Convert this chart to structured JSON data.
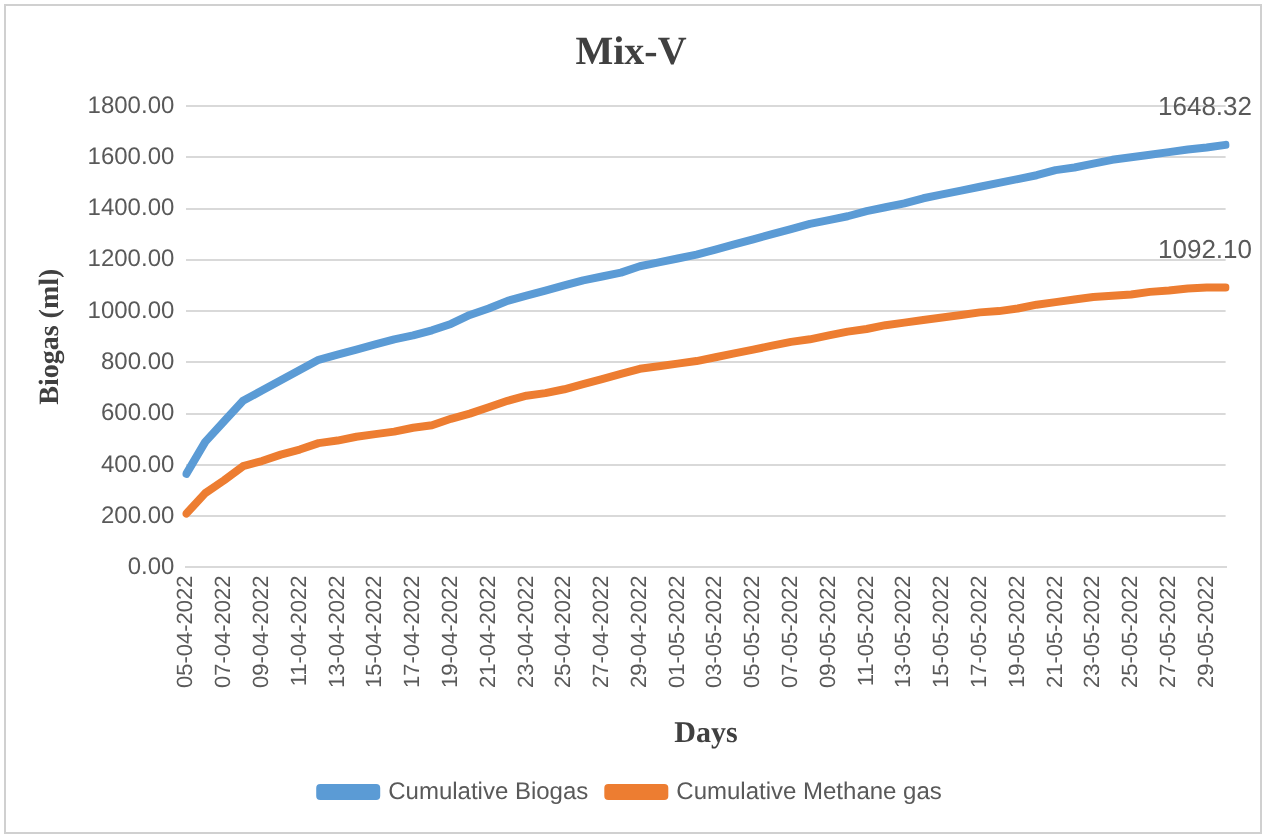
{
  "chart_data": {
    "type": "line",
    "title": "Mix-V",
    "xlabel": "Days",
    "ylabel": "Biogas (ml)",
    "categories": [
      "05-04-2022",
      null,
      "07-04-2022",
      null,
      "09-04-2022",
      null,
      "11-04-2022",
      null,
      "13-04-2022",
      null,
      "15-04-2022",
      null,
      "17-04-2022",
      null,
      "19-04-2022",
      null,
      "21-04-2022",
      null,
      "23-04-2022",
      null,
      "25-04-2022",
      null,
      "27-04-2022",
      null,
      "29-04-2022",
      null,
      "01-05-2022",
      null,
      "03-05-2022",
      null,
      "05-05-2022",
      null,
      "07-05-2022",
      null,
      "09-05-2022",
      null,
      "11-05-2022",
      null,
      "13-05-2022",
      null,
      "15-05-2022",
      null,
      "17-05-2022",
      null,
      "19-05-2022",
      null,
      "21-05-2022",
      null,
      "23-05-2022",
      null,
      "25-05-2022",
      null,
      "27-05-2022",
      null,
      "29-05-2022",
      null
    ],
    "series": [
      {
        "name": "Cumulative Biogas",
        "color": "#5b9bd5",
        "values": [
          365,
          490,
          570,
          650,
          690,
          730,
          770,
          810,
          830,
          850,
          870,
          890,
          905,
          925,
          950,
          985,
          1010,
          1040,
          1060,
          1080,
          1100,
          1120,
          1135,
          1150,
          1175,
          1190,
          1205,
          1220,
          1240,
          1260,
          1280,
          1300,
          1320,
          1340,
          1355,
          1370,
          1390,
          1405,
          1420,
          1440,
          1455,
          1470,
          1485,
          1500,
          1515,
          1530,
          1550,
          1560,
          1575,
          1590,
          1600,
          1610,
          1620,
          1630,
          1638,
          1648.32
        ],
        "value_labels": [
          null,
          null,
          null,
          null,
          null,
          null,
          null,
          null,
          null,
          null,
          null,
          null,
          null,
          null,
          null,
          null,
          null,
          null,
          null,
          null,
          null,
          null,
          null,
          null,
          null,
          null,
          null,
          null,
          null,
          null,
          null,
          null,
          null,
          null,
          null,
          null,
          null,
          null,
          null,
          null,
          null,
          null,
          null,
          null,
          null,
          null,
          null,
          null,
          null,
          null,
          null,
          null,
          null,
          null,
          null,
          "1648.32"
        ]
      },
      {
        "name": "Cumulative Methane gas",
        "color": "#ed7d31",
        "values": [
          210,
          290,
          340,
          395,
          415,
          440,
          460,
          485,
          495,
          510,
          520,
          530,
          545,
          555,
          580,
          600,
          625,
          650,
          670,
          680,
          695,
          715,
          735,
          755,
          775,
          785,
          795,
          805,
          820,
          835,
          850,
          865,
          880,
          890,
          905,
          920,
          930,
          945,
          955,
          965,
          975,
          985,
          995,
          1000,
          1010,
          1025,
          1035,
          1045,
          1055,
          1060,
          1065,
          1075,
          1080,
          1088,
          1092,
          1092.1
        ],
        "value_labels": [
          null,
          null,
          null,
          null,
          null,
          null,
          null,
          null,
          null,
          null,
          null,
          null,
          null,
          null,
          null,
          null,
          null,
          null,
          null,
          null,
          null,
          null,
          null,
          null,
          null,
          null,
          null,
          null,
          null,
          null,
          null,
          null,
          null,
          null,
          null,
          null,
          null,
          null,
          null,
          null,
          null,
          null,
          null,
          null,
          null,
          null,
          null,
          null,
          null,
          null,
          null,
          null,
          null,
          null,
          null,
          "1092.10"
        ]
      }
    ],
    "ylim": [
      0,
      1800
    ],
    "yticks": [
      {
        "value": 0,
        "label": "0.00"
      },
      {
        "value": 200,
        "label": "200.00"
      },
      {
        "value": 400,
        "label": "400.00"
      },
      {
        "value": 600,
        "label": "600.00"
      },
      {
        "value": 800,
        "label": "800.00"
      },
      {
        "value": 1000,
        "label": "1000.00"
      },
      {
        "value": 1200,
        "label": "1200.00"
      },
      {
        "value": 1400,
        "label": "1400.00"
      },
      {
        "value": 1600,
        "label": "1600.00"
      },
      {
        "value": 1800,
        "label": "1800.00"
      }
    ],
    "grid": "y",
    "legend": "bottom",
    "marker": "none",
    "line_style": "solid"
  }
}
